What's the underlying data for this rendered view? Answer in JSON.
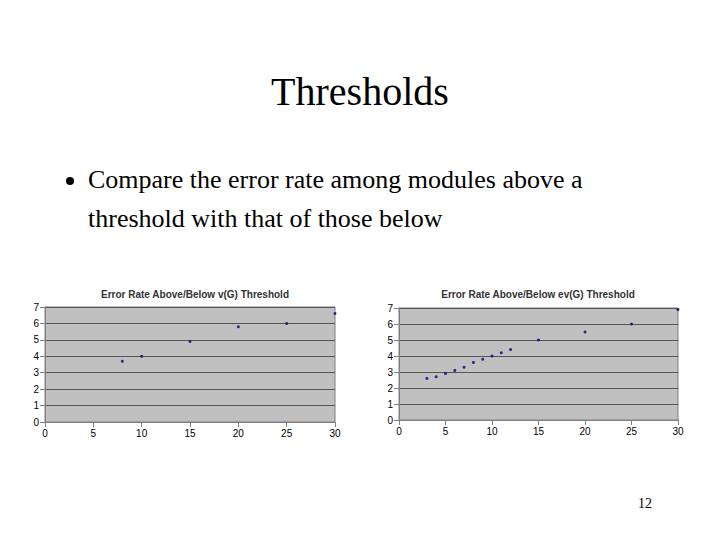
{
  "slide": {
    "title": "Thresholds",
    "bullet": "Compare the error rate among modules above a threshold with that of those below",
    "page": "12"
  },
  "chart_data": [
    {
      "type": "scatter",
      "title": "Error Rate Above/Below v(G) Threshold",
      "x": [
        8,
        10,
        15,
        20,
        25,
        30
      ],
      "values": [
        3.7,
        4.0,
        4.9,
        5.8,
        6.0,
        6.6
      ],
      "color": "#000080",
      "marker": "circle",
      "xlim": [
        0,
        30
      ],
      "xticks": [
        0,
        5,
        10,
        15,
        20,
        25,
        30
      ],
      "ylim": [
        0,
        7
      ],
      "yticks": [
        0,
        1,
        2,
        3,
        4,
        5,
        6,
        7
      ],
      "grid": true
    },
    {
      "type": "scatter",
      "title": "Error Rate Above/Below ev(G) Threshold",
      "x": [
        3,
        4,
        5,
        6,
        7,
        8,
        9,
        10,
        11,
        12,
        15,
        20,
        25,
        30
      ],
      "values": [
        2.6,
        2.7,
        2.9,
        3.1,
        3.3,
        3.6,
        3.8,
        4.0,
        4.2,
        4.4,
        5.0,
        5.5,
        6.0,
        6.9
      ],
      "color": "#000080",
      "marker": "circle",
      "xlim": [
        0,
        30
      ],
      "xticks": [
        0,
        5,
        10,
        15,
        20,
        25,
        30
      ],
      "ylim": [
        0,
        7
      ],
      "yticks": [
        0,
        1,
        2,
        3,
        4,
        5,
        6,
        7
      ],
      "grid": true
    }
  ]
}
